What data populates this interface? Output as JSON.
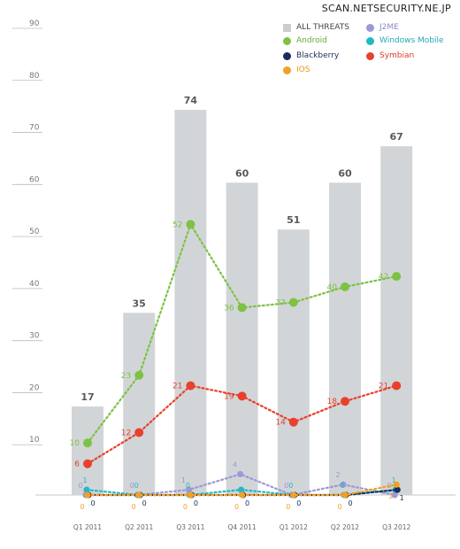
{
  "watermark": "SCAN.NETSECURITY.NE.JP",
  "chart_data": {
    "type": "bar",
    "categories": [
      "Q1 2011",
      "Q2 2011",
      "Q3 2011",
      "Q4 2011",
      "Q1 2012",
      "Q2 2012",
      "Q3 2012"
    ],
    "ylim": [
      0,
      90
    ],
    "yticks": [
      "10",
      "20",
      "30",
      "40",
      "50",
      "60",
      "70",
      "80",
      "90"
    ],
    "grid": false,
    "legend_position": "top-right",
    "series": [
      {
        "name": "ALL THREATS",
        "kind": "bar",
        "color": "#d2d5d8",
        "label_color": "#555a5e",
        "values": [
          17,
          35,
          74,
          60,
          51,
          60,
          67
        ],
        "labels": [
          "17",
          "35",
          "74",
          "60",
          "51",
          "60",
          "67"
        ]
      },
      {
        "name": "Android",
        "kind": "line",
        "color": "#7dc243",
        "values": [
          10,
          23,
          52,
          36,
          37,
          40,
          42
        ],
        "labels": [
          "10",
          "23",
          "52",
          "36",
          "37",
          "40",
          "42"
        ]
      },
      {
        "name": "Symbian",
        "kind": "line",
        "color": "#e8412c",
        "values": [
          6,
          12,
          21,
          19,
          14,
          18,
          21
        ],
        "labels": [
          "6",
          "12",
          "21",
          "19",
          "14",
          "18",
          "21"
        ]
      },
      {
        "name": "J2ME",
        "kind": "line",
        "color": "#9b99d6",
        "values": [
          0,
          0,
          1,
          4,
          0,
          2,
          0
        ],
        "labels": [
          "0",
          "0",
          "1",
          "4",
          "0",
          "2",
          "0"
        ]
      },
      {
        "name": "Windows Mobile",
        "kind": "line",
        "color": "#22b9c4",
        "values": [
          1,
          0,
          0,
          1,
          0,
          0,
          1
        ],
        "labels": [
          "1",
          "0",
          "0",
          "",
          "0",
          "0",
          "1"
        ]
      },
      {
        "name": "Blackberry",
        "kind": "line",
        "color": "#1a2d5a",
        "values": [
          0,
          0,
          0,
          0,
          0,
          0,
          1
        ],
        "labels": [
          "0",
          "0",
          "0",
          "0",
          "0",
          "0",
          "1"
        ]
      },
      {
        "name": "iOS",
        "kind": "line",
        "color": "#f3a024",
        "values": [
          0,
          0,
          0,
          0,
          0,
          0,
          2
        ],
        "labels": [
          "0",
          "0",
          "0",
          "0",
          "0",
          "0",
          "2"
        ]
      }
    ]
  },
  "legend": [
    {
      "label": "ALL THREATS",
      "color": "#c9ccd0",
      "shape": "square",
      "text_color": "#444444"
    },
    {
      "label": "J2ME",
      "color": "#9b99d6",
      "shape": "circle",
      "text_color": "#8a88c8"
    },
    {
      "label": "Android",
      "color": "#7dc243",
      "shape": "circle",
      "text_color": "#6aab36"
    },
    {
      "label": "Windows Mobile",
      "color": "#22b9c4",
      "shape": "circle",
      "text_color": "#22a9b4"
    },
    {
      "label": "Blackberry",
      "color": "#1a2d5a",
      "shape": "circle",
      "text_color": "#1a2d5a"
    },
    {
      "label": "Symbian",
      "color": "#e8412c",
      "shape": "circle",
      "text_color": "#e03a26"
    },
    {
      "label": "IOS",
      "color": "#f3a024",
      "shape": "circle",
      "text_color": "#e8961a"
    }
  ]
}
